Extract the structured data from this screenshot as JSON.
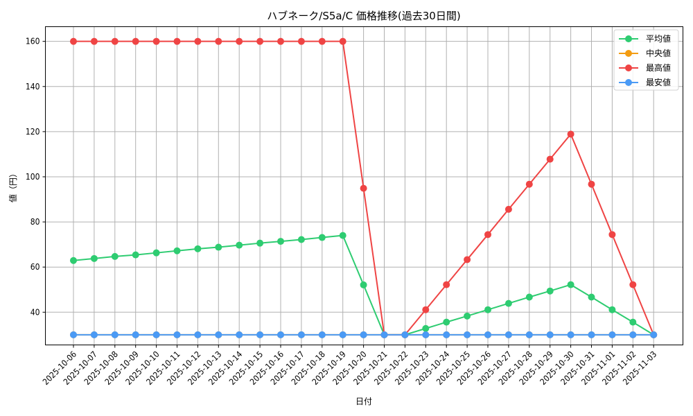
{
  "chart_data": {
    "type": "line",
    "title": "ハブネーク/S5a/C 価格推移(過去30日間)",
    "xlabel": "日付",
    "ylabel": "値（円）",
    "ylim": [
      25.5,
      166.5
    ],
    "yticks": [
      40,
      60,
      80,
      100,
      120,
      140,
      160
    ],
    "grid": true,
    "legend_position": "upper right",
    "categories": [
      "2025-10-06",
      "2025-10-07",
      "2025-10-08",
      "2025-10-09",
      "2025-10-10",
      "2025-10-11",
      "2025-10-12",
      "2025-10-13",
      "2025-10-14",
      "2025-10-15",
      "2025-10-16",
      "2025-10-17",
      "2025-10-18",
      "2025-10-19",
      "2025-10-20",
      "2025-10-21",
      "2025-10-22",
      "2025-10-23",
      "2025-10-24",
      "2025-10-25",
      "2025-10-26",
      "2025-10-27",
      "2025-10-28",
      "2025-10-29",
      "2025-10-30",
      "2025-10-31",
      "2025-11-01",
      "2025-11-02",
      "2025-11-03"
    ],
    "series": [
      {
        "name": "平均値",
        "color": "#2ecc71",
        "values": [
          62.9,
          63.8,
          64.7,
          65.4,
          66.3,
          67.2,
          68.1,
          68.8,
          69.7,
          70.6,
          71.4,
          72.2,
          73.1,
          74.0,
          52.1,
          30,
          30,
          32.8,
          35.6,
          38.3,
          41.1,
          43.9,
          46.7,
          49.4,
          52.2,
          46.7,
          41.1,
          35.6,
          30
        ]
      },
      {
        "name": "中央値",
        "color": "#f39c12",
        "values": [
          30,
          30,
          30,
          30,
          30,
          30,
          30,
          30,
          30,
          30,
          30,
          30,
          30,
          30,
          30,
          30,
          30,
          30,
          30,
          30,
          30,
          30,
          30,
          30,
          30,
          30,
          30,
          30,
          30
        ]
      },
      {
        "name": "最高値",
        "color": "#ef4444",
        "values": [
          160,
          160,
          160,
          160,
          160,
          160,
          160,
          160,
          160,
          160,
          160,
          160,
          160,
          160,
          94.9,
          30,
          30,
          41.1,
          52.2,
          63.3,
          74.4,
          85.6,
          96.7,
          107.8,
          118.9,
          96.7,
          74.4,
          52.2,
          30
        ]
      },
      {
        "name": "最安値",
        "color": "#4a9af5",
        "values": [
          30,
          30,
          30,
          30,
          30,
          30,
          30,
          30,
          30,
          30,
          30,
          30,
          30,
          30,
          30,
          30,
          30,
          30,
          30,
          30,
          30,
          30,
          30,
          30,
          30,
          30,
          30,
          30,
          30
        ]
      }
    ]
  }
}
